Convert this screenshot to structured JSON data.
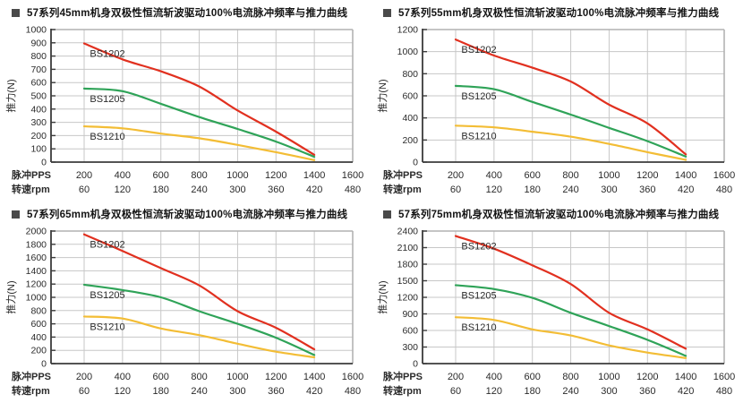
{
  "page": {
    "background": "#ffffff"
  },
  "colors": {
    "grid": "#c7c7c7",
    "plot_border": "#b2b2b2",
    "axis": "#3b3b3b",
    "text": "#2b2b2b",
    "title": "#141414",
    "bullet": "#4a4a4a",
    "series_red": "#e1301f",
    "series_green": "#2fa358",
    "series_yellow": "#f3bd35"
  },
  "chart_data": [
    {
      "type": "line",
      "title": "57系列45mm机身双极性恒流斩波驱动100%电流脉冲频率与推力曲线",
      "ylabel": "推力(N)",
      "ylim": [
        0,
        1000
      ],
      "ytick_step": 100,
      "grid": true,
      "legend_position": "inline-left",
      "x": [
        200,
        400,
        600,
        800,
        1000,
        1200,
        1400
      ],
      "x_axis_rows": [
        {
          "label": "脉冲PPS",
          "values": [
            "200",
            "400",
            "600",
            "800",
            "1000",
            "1200",
            "1400",
            "1600"
          ]
        },
        {
          "label": "转速rpm",
          "values": [
            "60",
            "120",
            "180",
            "240",
            "300",
            "360",
            "420",
            "480"
          ]
        }
      ],
      "series": [
        {
          "name": "BS1202",
          "color": "#e1301f",
          "values": [
            895,
            775,
            685,
            570,
            390,
            230,
            55
          ]
        },
        {
          "name": "BS1205",
          "color": "#2fa358",
          "values": [
            555,
            535,
            440,
            340,
            250,
            155,
            40
          ]
        },
        {
          "name": "BS1210",
          "color": "#f3bd35",
          "values": [
            270,
            255,
            215,
            180,
            130,
            75,
            15
          ]
        }
      ]
    },
    {
      "type": "line",
      "title": "57系列55mm机身双极性恒流斩波驱动100%电流脉冲频率与推力曲线",
      "ylabel": "推力(N)",
      "ylim": [
        0,
        1200
      ],
      "ytick_step": 200,
      "grid": true,
      "legend_position": "inline-left",
      "x": [
        200,
        400,
        600,
        800,
        1000,
        1200,
        1400
      ],
      "x_axis_rows": [
        {
          "label": "脉冲PPS",
          "values": [
            "200",
            "400",
            "600",
            "800",
            "1000",
            "1200",
            "1400",
            "1600"
          ]
        },
        {
          "label": "转速rpm",
          "values": [
            "60",
            "120",
            "180",
            "240",
            "300",
            "360",
            "420",
            "480"
          ]
        }
      ],
      "series": [
        {
          "name": "BS1202",
          "color": "#e1301f",
          "values": [
            1110,
            965,
            855,
            730,
            520,
            350,
            70
          ]
        },
        {
          "name": "BS1205",
          "color": "#2fa358",
          "values": [
            690,
            660,
            545,
            430,
            310,
            190,
            50
          ]
        },
        {
          "name": "BS1210",
          "color": "#f3bd35",
          "values": [
            330,
            315,
            275,
            230,
            165,
            90,
            20
          ]
        }
      ]
    },
    {
      "type": "line",
      "title": "57系列65mm机身双极性恒流斩波驱动100%电流脉冲频率与推力曲线",
      "ylabel": "推力(N)",
      "ylim": [
        0,
        2000
      ],
      "ytick_step": 200,
      "grid": true,
      "legend_position": "inline-left",
      "x": [
        200,
        400,
        600,
        800,
        1000,
        1200,
        1400
      ],
      "x_axis_rows": [
        {
          "label": "脉冲PPS",
          "values": [
            "200",
            "400",
            "600",
            "800",
            "1000",
            "1200",
            "1400",
            "1600"
          ]
        },
        {
          "label": "转速rpm",
          "values": [
            "60",
            "120",
            "180",
            "240",
            "300",
            "360",
            "420",
            "480"
          ]
        }
      ],
      "series": [
        {
          "name": "BS1202",
          "color": "#e1301f",
          "values": [
            1950,
            1700,
            1440,
            1180,
            790,
            540,
            215
          ]
        },
        {
          "name": "BS1205",
          "color": "#2fa358",
          "values": [
            1190,
            1110,
            1000,
            790,
            600,
            390,
            130
          ]
        },
        {
          "name": "BS1210",
          "color": "#f3bd35",
          "values": [
            710,
            680,
            530,
            430,
            300,
            180,
            95
          ]
        }
      ]
    },
    {
      "type": "line",
      "title": "57系列75mm机身双极性恒流斩波驱动100%电流脉冲频率与推力曲线",
      "ylabel": "推力(N)",
      "ylim": [
        0,
        2400
      ],
      "ytick_step": 300,
      "grid": true,
      "legend_position": "inline-left",
      "x": [
        200,
        400,
        600,
        800,
        1000,
        1200,
        1400
      ],
      "x_axis_rows": [
        {
          "label": "脉冲PPS",
          "values": [
            "200",
            "400",
            "600",
            "800",
            "1000",
            "1200",
            "1400",
            "1600"
          ]
        },
        {
          "label": "转速rpm",
          "values": [
            "60",
            "120",
            "180",
            "240",
            "300",
            "360",
            "420",
            "480"
          ]
        }
      ],
      "series": [
        {
          "name": "BS1202",
          "color": "#e1301f",
          "values": [
            2310,
            2080,
            1780,
            1440,
            920,
            620,
            270
          ]
        },
        {
          "name": "BS1205",
          "color": "#2fa358",
          "values": [
            1420,
            1350,
            1190,
            920,
            680,
            430,
            140
          ]
        },
        {
          "name": "BS1210",
          "color": "#f3bd35",
          "values": [
            840,
            790,
            620,
            510,
            330,
            200,
            100
          ]
        }
      ]
    }
  ]
}
